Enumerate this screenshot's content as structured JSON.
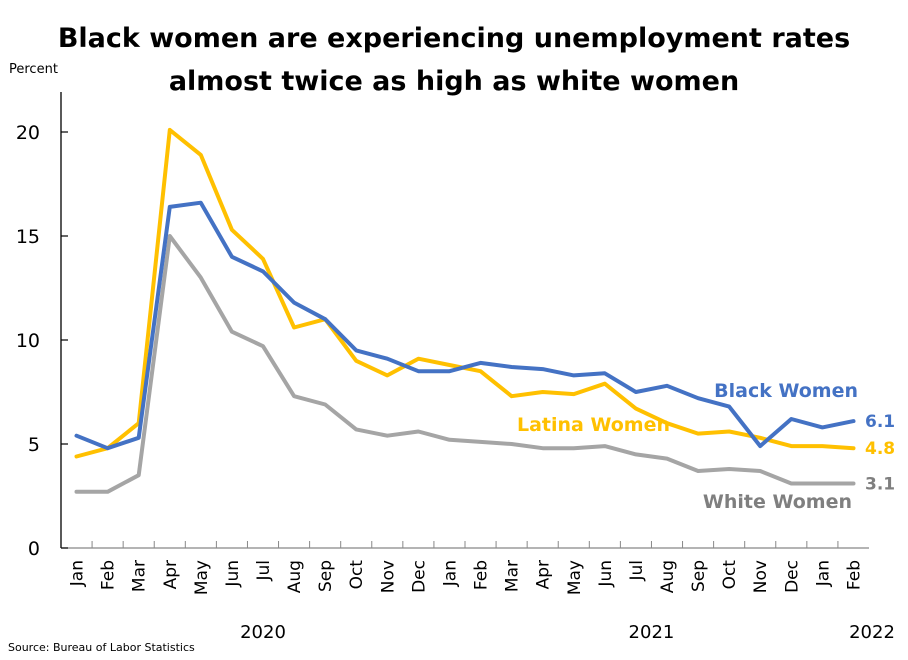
{
  "chart_data": {
    "type": "line",
    "title": "Black women are experiencing unemployment rates almost twice as high as white women",
    "title_lines": [
      "Black women are experiencing unemployment rates",
      "almost twice as high as white women"
    ],
    "ylabel": "Percent",
    "xlabel": "",
    "ylim": [
      0,
      22
    ],
    "yticks": [
      0,
      5,
      10,
      15,
      20
    ],
    "grid": false,
    "categories": [
      "Jan",
      "Feb",
      "Mar",
      "Apr",
      "May",
      "Jun",
      "Jul",
      "Aug",
      "Sep",
      "Oct",
      "Nov",
      "Dec",
      "Jan",
      "Feb",
      "Mar",
      "Apr",
      "May",
      "Jun",
      "Jul",
      "Aug",
      "Sep",
      "Oct",
      "Nov",
      "Dec",
      "Jan",
      "Feb"
    ],
    "year_labels": [
      {
        "label": "2020",
        "center_index": 6
      },
      {
        "label": "2021",
        "center_index": 18.5
      },
      {
        "label": "2022",
        "center_index": 25.5
      }
    ],
    "series": [
      {
        "name": "White Women",
        "color": "#A5A5A5",
        "label_color": "#7F7F7F",
        "values": [
          2.7,
          2.7,
          3.5,
          15.0,
          13.0,
          10.4,
          9.7,
          7.3,
          6.9,
          5.7,
          5.4,
          5.6,
          5.2,
          5.1,
          5.0,
          4.8,
          4.8,
          4.9,
          4.5,
          4.3,
          3.7,
          3.8,
          3.7,
          3.1,
          3.1,
          3.1
        ],
        "end_label": "3.1"
      },
      {
        "name": "Latina Women",
        "color": "#FFC000",
        "label_color": "#FFC000",
        "values": [
          4.4,
          4.8,
          6.0,
          20.1,
          18.9,
          15.3,
          13.9,
          10.6,
          11.0,
          9.0,
          8.3,
          9.1,
          8.8,
          8.5,
          7.3,
          7.5,
          7.4,
          7.9,
          6.7,
          6.0,
          5.5,
          5.6,
          5.3,
          4.9,
          4.9,
          4.8
        ],
        "end_label": "4.8"
      },
      {
        "name": "Black Women",
        "color": "#4472C4",
        "label_color": "#4472C4",
        "values": [
          5.4,
          4.8,
          5.3,
          16.4,
          16.6,
          14.0,
          13.3,
          11.8,
          11.0,
          9.5,
          9.1,
          8.5,
          8.5,
          8.9,
          8.7,
          8.6,
          8.3,
          8.4,
          7.5,
          7.8,
          7.2,
          6.8,
          4.9,
          6.2,
          5.8,
          6.1
        ],
        "end_label": "6.1"
      }
    ],
    "source": "Source: Bureau of Labor Statistics"
  }
}
